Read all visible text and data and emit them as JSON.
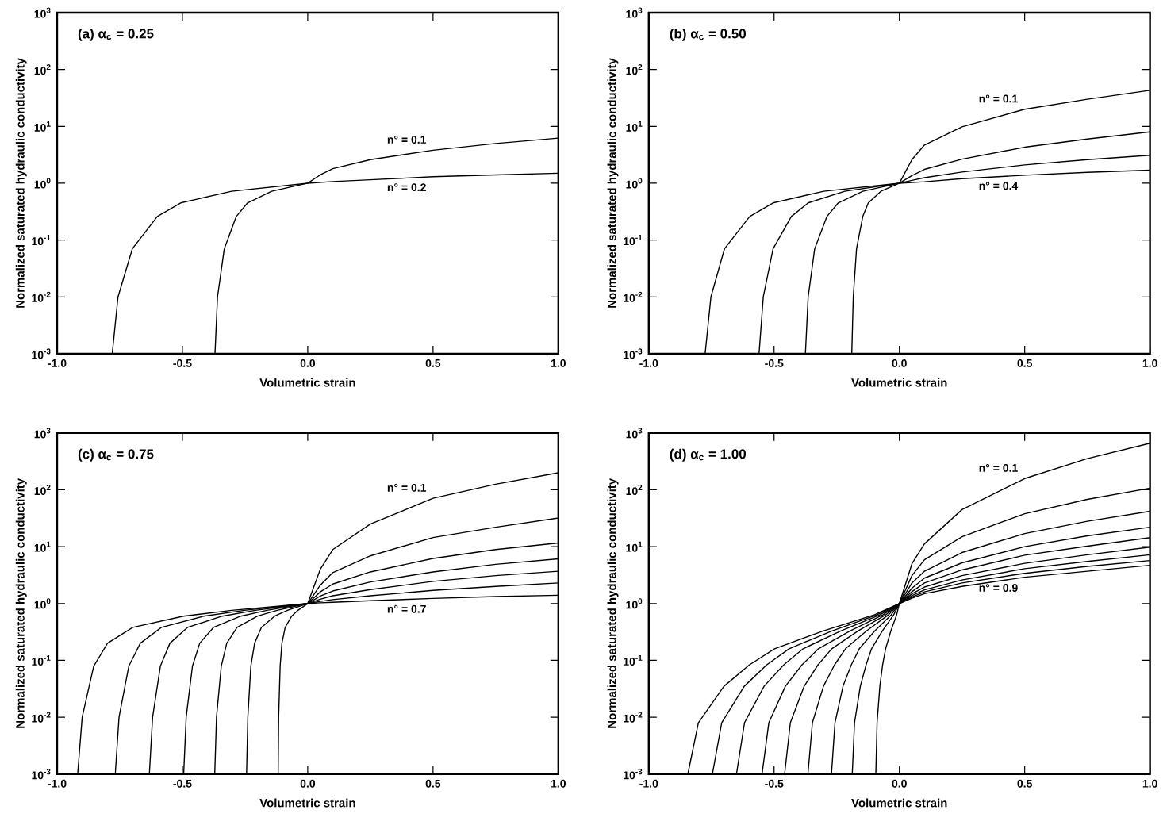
{
  "chart_data": [
    {
      "type": "line",
      "title": "(a) α$_{c}$ = 0.25",
      "xlabel": "Volumetric strain",
      "ylabel": "Normalized saturated hydraulic conductivity",
      "log": "y",
      "xlim": [
        -1,
        1
      ],
      "ylim": [
        0.001,
        1000
      ],
      "xticks": [
        {
          "value": -1,
          "label": "-1.0"
        },
        {
          "value": -0.5,
          "label": "-0.5"
        },
        {
          "value": 0,
          "label": "0.0"
        },
        {
          "value": 0.5,
          "label": "0.5"
        },
        {
          "value": 1,
          "label": "1.0"
        }
      ],
      "yticks": [
        {
          "value": 0.001,
          "label": "10$^{-3}$"
        },
        {
          "value": 0.01,
          "label": "10$^{-2}$"
        },
        {
          "value": 0.1,
          "label": "10$^{-1}$"
        },
        {
          "value": 1,
          "label": "10$^{0}$"
        },
        {
          "value": 10,
          "label": "10$^{1}$"
        },
        {
          "value": 100,
          "label": "10$^{2}$"
        },
        {
          "value": 1000,
          "label": "10$^{3}$"
        }
      ],
      "series": [
        {
          "name": "n° = 0.1",
          "color": "#000000",
          "x": [
            -0.37,
            -0.36,
            -0.333,
            -0.285,
            -0.24,
            -0.144,
            0,
            0.05,
            0.1,
            0.25,
            0.5,
            0.75,
            1
          ],
          "values": [
            0.001,
            0.01,
            0.07,
            0.26,
            0.45,
            0.72,
            1,
            1.4,
            1.8,
            2.6,
            3.8,
            5.0,
            6.2
          ]
        },
        {
          "name": "n° = 0.2",
          "color": "#000000",
          "x": [
            -0.78,
            -0.757,
            -0.7,
            -0.6,
            -0.507,
            -0.304,
            0,
            0.1,
            0.25,
            0.5,
            0.75,
            1
          ],
          "values": [
            0.001,
            0.01,
            0.07,
            0.26,
            0.45,
            0.72,
            1,
            1.07,
            1.15,
            1.3,
            1.4,
            1.5
          ]
        }
      ]
    },
    {
      "type": "line",
      "title": "(b) α$_{c}$ = 0.50",
      "xlabel": "Volumetric strain",
      "ylabel": "Normalized saturated hydraulic conductivity",
      "log": "y",
      "xlim": [
        -1,
        1
      ],
      "ylim": [
        0.001,
        1000
      ],
      "xticks": [
        {
          "value": -1,
          "label": "-1.0"
        },
        {
          "value": -0.5,
          "label": "-0.5"
        },
        {
          "value": 0,
          "label": "0.0"
        },
        {
          "value": 0.5,
          "label": "0.5"
        },
        {
          "value": 1,
          "label": "1.0"
        }
      ],
      "yticks": [
        {
          "value": 0.001,
          "label": "10$^{-3}$"
        },
        {
          "value": 0.01,
          "label": "10$^{-2}$"
        },
        {
          "value": 0.1,
          "label": "10$^{-1}$"
        },
        {
          "value": 1,
          "label": "10$^{0}$"
        },
        {
          "value": 10,
          "label": "10$^{1}$"
        },
        {
          "value": 100,
          "label": "10$^{2}$"
        },
        {
          "value": 1000,
          "label": "10$^{3}$"
        }
      ],
      "series": [
        {
          "name": "n° = 0.1",
          "color": "#000000",
          "x": [
            -0.19,
            -0.184,
            -0.171,
            -0.146,
            -0.124,
            -0.074,
            0,
            0.05,
            0.1,
            0.25,
            0.5,
            0.75,
            1
          ],
          "values": [
            0.001,
            0.01,
            0.07,
            0.26,
            0.45,
            0.72,
            1,
            2.6,
            4.7,
            9.8,
            20,
            30,
            43
          ]
        },
        {
          "color": "#000000",
          "x": [
            -0.375,
            -0.364,
            -0.338,
            -0.289,
            -0.244,
            -0.146,
            0,
            0.05,
            0.1,
            0.25,
            0.5,
            0.75,
            1
          ],
          "values": [
            0.001,
            0.01,
            0.07,
            0.26,
            0.45,
            0.72,
            1,
            1.36,
            1.75,
            2.65,
            4.3,
            6.0,
            8
          ]
        },
        {
          "color": "#000000",
          "x": [
            -0.56,
            -0.543,
            -0.504,
            -0.431,
            -0.364,
            -0.218,
            0,
            0.05,
            0.1,
            0.25,
            0.5,
            0.75,
            1
          ],
          "values": [
            0.001,
            0.01,
            0.07,
            0.26,
            0.45,
            0.72,
            1,
            1.12,
            1.25,
            1.57,
            2.1,
            2.6,
            3.1
          ]
        },
        {
          "name": "n° = 0.4",
          "color": "#000000",
          "x": [
            -0.775,
            -0.752,
            -0.698,
            -0.597,
            -0.504,
            -0.302,
            0,
            0.1,
            0.25,
            0.5,
            0.75,
            1
          ],
          "values": [
            0.001,
            0.01,
            0.07,
            0.26,
            0.45,
            0.72,
            1,
            1.06,
            1.2,
            1.38,
            1.55,
            1.7
          ]
        }
      ]
    },
    {
      "type": "line",
      "title": "(c) α$_{c}$ = 0.75",
      "xlabel": "Volumetric strain",
      "ylabel": "Normalized saturated hydraulic conductivity",
      "log": "y",
      "xlim": [
        -1,
        1
      ],
      "ylim": [
        0.001,
        1000
      ],
      "xticks": [
        {
          "value": -1,
          "label": "-1.0"
        },
        {
          "value": -0.5,
          "label": "-0.5"
        },
        {
          "value": 0,
          "label": "0.0"
        },
        {
          "value": 0.5,
          "label": "0.5"
        },
        {
          "value": 1,
          "label": "1.0"
        }
      ],
      "yticks": [
        {
          "value": 0.001,
          "label": "10$^{-3}$"
        },
        {
          "value": 0.01,
          "label": "10$^{-2}$"
        },
        {
          "value": 0.1,
          "label": "10$^{-1}$"
        },
        {
          "value": 1,
          "label": "10$^{0}$"
        },
        {
          "value": 10,
          "label": "10$^{1}$"
        },
        {
          "value": 100,
          "label": "10$^{2}$"
        },
        {
          "value": 1000,
          "label": "10$^{3}$"
        }
      ],
      "series": [
        {
          "name": "n° = 0.1",
          "color": "#000000",
          "x": [
            -0.118,
            -0.116,
            -0.11,
            -0.103,
            -0.09,
            -0.064,
            -0.039,
            0,
            0.05,
            0.1,
            0.25,
            0.5,
            0.75,
            1
          ],
          "values": [
            0.001,
            0.01,
            0.079,
            0.2,
            0.38,
            0.6,
            0.76,
            1,
            4.0,
            8.9,
            25,
            71,
            126,
            200
          ]
        },
        {
          "color": "#000000",
          "x": [
            -0.244,
            -0.239,
            -0.227,
            -0.212,
            -0.185,
            -0.132,
            -0.081,
            0,
            0.05,
            0.1,
            0.25,
            0.5,
            0.75,
            1
          ],
          "values": [
            0.001,
            0.01,
            0.079,
            0.2,
            0.38,
            0.6,
            0.76,
            1,
            2.1,
            3.5,
            6.9,
            14.5,
            22,
            32
          ]
        },
        {
          "color": "#000000",
          "x": [
            -0.371,
            -0.364,
            -0.345,
            -0.323,
            -0.282,
            -0.2,
            -0.122,
            0,
            0.05,
            0.1,
            0.25,
            0.5,
            0.75,
            1
          ],
          "values": [
            0.001,
            0.01,
            0.079,
            0.2,
            0.38,
            0.6,
            0.76,
            1,
            1.6,
            2.2,
            3.6,
            6.2,
            8.9,
            11.6
          ]
        },
        {
          "color": "#000000",
          "x": [
            -0.495,
            -0.485,
            -0.46,
            -0.431,
            -0.376,
            -0.267,
            -0.163,
            0,
            0.05,
            0.1,
            0.25,
            0.5,
            0.75,
            1
          ],
          "values": [
            0.001,
            0.01,
            0.079,
            0.2,
            0.38,
            0.6,
            0.76,
            1,
            1.35,
            1.66,
            2.4,
            3.6,
            4.9,
            6.1
          ]
        },
        {
          "color": "#000000",
          "x": [
            -0.632,
            -0.619,
            -0.588,
            -0.55,
            -0.48,
            -0.341,
            -0.209,
            0,
            0.05,
            0.1,
            0.25,
            0.5,
            0.75,
            1
          ],
          "values": [
            0.001,
            0.01,
            0.079,
            0.2,
            0.38,
            0.6,
            0.76,
            1,
            1.19,
            1.37,
            1.76,
            2.45,
            3.1,
            3.7
          ]
        },
        {
          "color": "#000000",
          "x": [
            -0.768,
            -0.753,
            -0.714,
            -0.668,
            -0.584,
            -0.415,
            -0.253,
            0,
            0.05,
            0.1,
            0.25,
            0.5,
            0.75,
            1
          ],
          "values": [
            0.001,
            0.01,
            0.079,
            0.2,
            0.38,
            0.6,
            0.76,
            1,
            1.09,
            1.17,
            1.37,
            1.7,
            2.0,
            2.3
          ]
        },
        {
          "name": "n° = 0.7",
          "color": "#000000",
          "x": [
            -0.918,
            -0.9,
            -0.854,
            -0.799,
            -0.698,
            -0.496,
            -0.303,
            0,
            0.05,
            0.1,
            0.25,
            0.5,
            0.75,
            1
          ],
          "values": [
            0.001,
            0.01,
            0.079,
            0.2,
            0.38,
            0.6,
            0.76,
            1,
            1.03,
            1.05,
            1.12,
            1.23,
            1.33,
            1.4
          ]
        }
      ]
    },
    {
      "type": "line",
      "title": "(d) α$_{c}$ = 1.00",
      "xlabel": "Volumetric strain",
      "ylabel": "Normalized saturated hydraulic conductivity",
      "log": "y",
      "xlim": [
        -1,
        1
      ],
      "ylim": [
        0.001,
        1000
      ],
      "xticks": [
        {
          "value": -1,
          "label": "-1.0"
        },
        {
          "value": -0.5,
          "label": "-0.5"
        },
        {
          "value": 0,
          "label": "0.0"
        },
        {
          "value": 0.5,
          "label": "0.5"
        },
        {
          "value": 1,
          "label": "1.0"
        }
      ],
      "yticks": [
        {
          "value": 0.001,
          "label": "10$^{-3}$"
        },
        {
          "value": 0.01,
          "label": "10$^{-2}$"
        },
        {
          "value": 0.1,
          "label": "10$^{-1}$"
        },
        {
          "value": 1,
          "label": "10$^{0}$"
        },
        {
          "value": 10,
          "label": "10$^{1}$"
        },
        {
          "value": 100,
          "label": "10$^{2}$"
        },
        {
          "value": 1000,
          "label": "10$^{3}$"
        }
      ],
      "series": [
        {
          "name": "n° = 0.1",
          "color": "#000000",
          "x": [
            -0.094,
            -0.089,
            -0.078,
            -0.067,
            -0.055,
            -0.034,
            -0.011,
            0,
            0.05,
            0.1,
            0.25,
            0.5,
            0.75,
            1
          ],
          "values": [
            0.001,
            0.008,
            0.035,
            0.083,
            0.16,
            0.33,
            0.63,
            1,
            5.0,
            11.2,
            45,
            158,
            355,
            660
          ]
        },
        {
          "color": "#000000",
          "x": [
            -0.188,
            -0.179,
            -0.156,
            -0.133,
            -0.111,
            -0.068,
            -0.023,
            0,
            0.05,
            0.1,
            0.25,
            0.5,
            0.75,
            1
          ],
          "values": [
            0.001,
            0.008,
            0.035,
            0.083,
            0.16,
            0.33,
            0.63,
            1,
            3.1,
            5.9,
            15,
            38,
            68,
            107
          ]
        },
        {
          "color": "#000000",
          "x": [
            -0.271,
            -0.257,
            -0.225,
            -0.192,
            -0.16,
            -0.098,
            -0.033,
            0,
            0.05,
            0.1,
            0.25,
            0.5,
            0.75,
            1
          ],
          "values": [
            0.001,
            0.008,
            0.035,
            0.083,
            0.16,
            0.33,
            0.63,
            1,
            2.3,
            3.7,
            7.9,
            17,
            28,
            42
          ]
        },
        {
          "color": "#000000",
          "x": [
            -0.365,
            -0.347,
            -0.303,
            -0.259,
            -0.215,
            -0.131,
            -0.044,
            0,
            0.05,
            0.1,
            0.25,
            0.5,
            0.75,
            1
          ],
          "values": [
            0.001,
            0.008,
            0.035,
            0.083,
            0.16,
            0.33,
            0.63,
            1,
            1.86,
            2.8,
            5.2,
            10,
            15.5,
            22
          ]
        },
        {
          "color": "#000000",
          "x": [
            -0.458,
            -0.435,
            -0.38,
            -0.325,
            -0.27,
            -0.165,
            -0.055,
            0,
            0.05,
            0.1,
            0.25,
            0.5,
            0.75,
            1
          ],
          "values": [
            0.001,
            0.008,
            0.035,
            0.083,
            0.16,
            0.33,
            0.63,
            1,
            1.62,
            2.3,
            3.9,
            7.1,
            10.2,
            14.4
          ]
        },
        {
          "color": "#000000",
          "x": [
            -0.548,
            -0.521,
            -0.455,
            -0.389,
            -0.323,
            -0.197,
            -0.066,
            0,
            0.05,
            0.1,
            0.25,
            0.5,
            0.75,
            1
          ],
          "values": [
            0.001,
            0.008,
            0.035,
            0.083,
            0.16,
            0.33,
            0.63,
            1,
            1.48,
            1.95,
            3.1,
            5.1,
            7.2,
            9.8
          ]
        },
        {
          "color": "#000000",
          "x": [
            -0.65,
            -0.618,
            -0.54,
            -0.462,
            -0.384,
            -0.234,
            -0.078,
            0,
            0.05,
            0.1,
            0.25,
            0.5,
            0.75,
            1
          ],
          "values": [
            0.001,
            0.008,
            0.035,
            0.083,
            0.16,
            0.33,
            0.63,
            1,
            1.38,
            1.74,
            2.6,
            4.1,
            5.5,
            7.2
          ]
        },
        {
          "color": "#000000",
          "x": [
            -0.746,
            -0.709,
            -0.619,
            -0.53,
            -0.44,
            -0.269,
            -0.09,
            0,
            0.05,
            0.1,
            0.25,
            0.5,
            0.75,
            1
          ],
          "values": [
            0.001,
            0.008,
            0.035,
            0.083,
            0.16,
            0.33,
            0.63,
            1,
            1.3,
            1.6,
            2.3,
            3.4,
            4.5,
            5.7
          ]
        },
        {
          "name": "n° = 0.9",
          "color": "#000000",
          "x": [
            -0.844,
            -0.802,
            -0.7,
            -0.599,
            -0.498,
            -0.304,
            -0.101,
            0,
            0.05,
            0.1,
            0.25,
            0.5,
            0.75,
            1
          ],
          "values": [
            0.001,
            0.008,
            0.035,
            0.083,
            0.16,
            0.33,
            0.63,
            1,
            1.24,
            1.49,
            2.0,
            2.9,
            3.7,
            4.7
          ]
        }
      ]
    }
  ]
}
